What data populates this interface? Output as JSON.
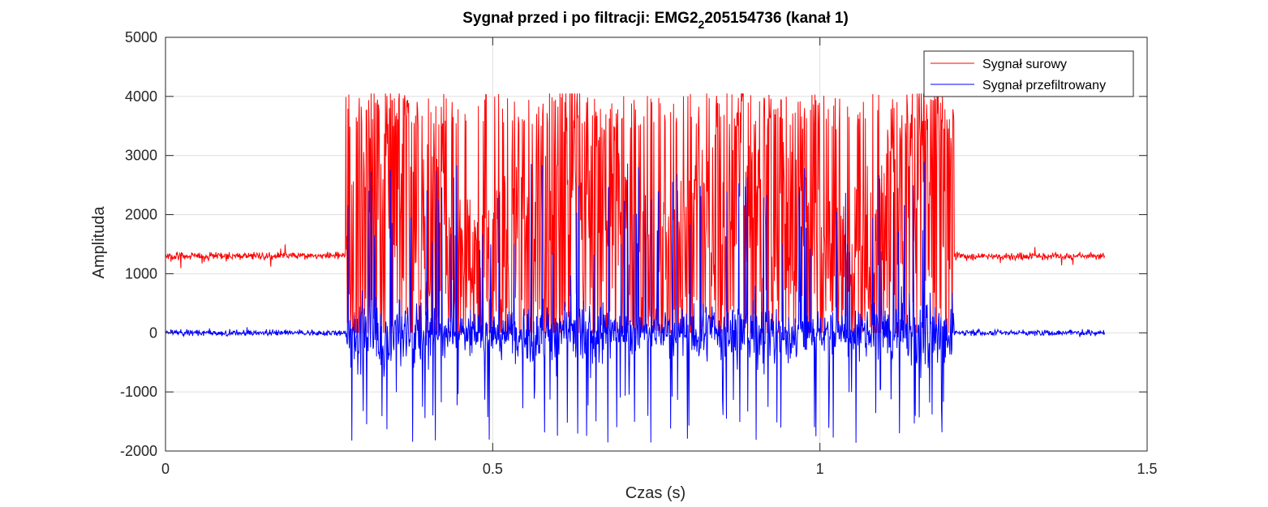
{
  "chart_data": {
    "type": "line",
    "title": "Sygnał przed i po filtracji: EMG2",
    "title_subscript": "2",
    "title_suffix": "205154736 (kanał 1)",
    "xlabel": "Czas (s)",
    "ylabel": "Amplituda",
    "xlim": [
      0,
      1.5
    ],
    "ylim": [
      -2000,
      5000
    ],
    "xticks": [
      0,
      0.5,
      1,
      1.5
    ],
    "xtick_labels": [
      "0",
      "0.5",
      "1",
      "1.5"
    ],
    "yticks": [
      -2000,
      -1000,
      0,
      1000,
      2000,
      3000,
      4000,
      5000
    ],
    "ytick_labels": [
      "-2000",
      "-1000",
      "0",
      "1000",
      "2000",
      "3000",
      "4000",
      "5000"
    ],
    "grid": true,
    "legend_position": "top-right",
    "signal_duration_s": 1.435,
    "active_interval_s": [
      0.275,
      1.205
    ],
    "series": [
      {
        "name": "Sygnał surowy",
        "color": "#ff0000",
        "baseline": 1300,
        "rest_noise": 60,
        "burst_min": 0,
        "burst_max": 4050
      },
      {
        "name": "Sygnał przefiltrowany",
        "color": "#0000ff",
        "baseline": 0,
        "rest_noise": 55,
        "burst_min": -1870,
        "burst_max": 2900
      }
    ]
  }
}
